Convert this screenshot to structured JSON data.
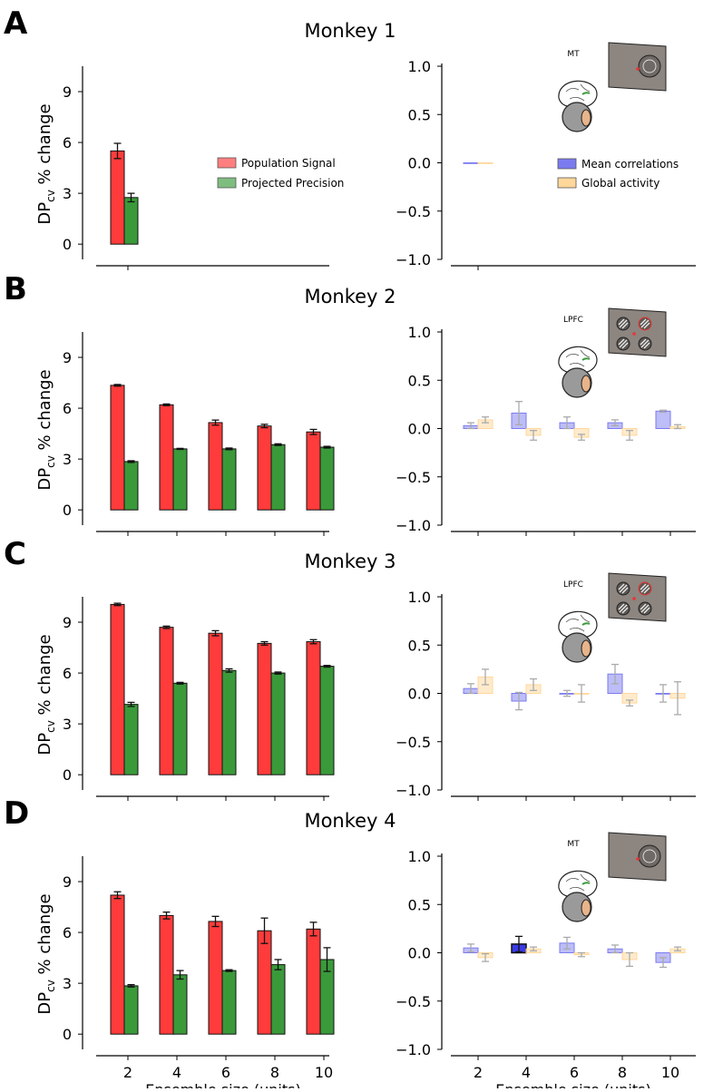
{
  "figure": {
    "xlabel": "Ensemble size (units)",
    "left_ylabel_main": "DP",
    "left_ylabel_sub": "cv",
    "left_ylabel_rest": " % change",
    "left_yticks": [
      "0",
      "3",
      "6",
      "9"
    ],
    "right_yticks": [
      "1.0",
      "0.5",
      "0.0",
      "−0.5",
      "−1.0"
    ],
    "xticks": [
      "2",
      "4",
      "6",
      "8",
      "10"
    ],
    "legend_left": [
      "Population Signal",
      "Projected Precision"
    ],
    "legend_right": [
      "Mean correlations",
      "Global activity"
    ],
    "colors": {
      "population_signal": "#ff3b3b",
      "projected_precision": "#3a9a3a",
      "mean_correlations": "#7b7bf0",
      "global_activity": "#ffd79a",
      "inset_panel": "#8c8580"
    }
  },
  "chart_data": [
    {
      "type": "bar",
      "label": "A",
      "title": "Monkey 1",
      "area": "MT",
      "x": [
        2
      ],
      "left": {
        "ylabel": "DPcv % change",
        "ylim": [
          -0.9,
          10.5
        ],
        "series": [
          {
            "name": "Population Signal",
            "values": [
              5.5
            ],
            "errors": [
              0.45
            ]
          },
          {
            "name": "Projected Precision",
            "values": [
              2.75
            ],
            "errors": [
              0.25
            ]
          }
        ]
      },
      "right": {
        "ylim": [
          -1.0,
          1.0
        ],
        "series": [
          {
            "name": "Mean correlations",
            "values": [
              0.0
            ],
            "errors": [
              0.0
            ]
          },
          {
            "name": "Global activity",
            "values": [
              0.0
            ],
            "errors": [
              0.0
            ]
          }
        ]
      }
    },
    {
      "type": "bar",
      "label": "B",
      "title": "Monkey 2",
      "area": "LPFC",
      "x": [
        2,
        4,
        6,
        8,
        10
      ],
      "left": {
        "ylabel": "DPcv % change",
        "ylim": [
          -0.9,
          10.5
        ],
        "series": [
          {
            "name": "Population Signal",
            "values": [
              7.35,
              6.2,
              5.15,
              4.95,
              4.6
            ],
            "errors": [
              0.05,
              0.05,
              0.15,
              0.1,
              0.15
            ]
          },
          {
            "name": "Projected Precision",
            "values": [
              2.85,
              3.6,
              3.6,
              3.85,
              3.7
            ],
            "errors": [
              0.05,
              0.03,
              0.05,
              0.05,
              0.05
            ]
          }
        ]
      },
      "right": {
        "ylim": [
          -1.0,
          1.0
        ],
        "series": [
          {
            "name": "Mean correlations",
            "values": [
              0.03,
              0.16,
              0.06,
              0.06,
              0.18
            ],
            "errors": [
              0.03,
              0.12,
              0.06,
              0.03,
              0.01
            ]
          },
          {
            "name": "Global activity",
            "values": [
              0.09,
              -0.07,
              -0.09,
              -0.07,
              0.02
            ],
            "errors": [
              0.03,
              0.05,
              0.03,
              0.05,
              0.02
            ]
          }
        ]
      }
    },
    {
      "type": "bar",
      "label": "C",
      "title": "Monkey 3",
      "area": "LPFC",
      "x": [
        2,
        4,
        6,
        8,
        10
      ],
      "left": {
        "ylabel": "DPcv % change",
        "ylim": [
          -0.9,
          10.5
        ],
        "series": [
          {
            "name": "Population Signal",
            "values": [
              10.05,
              8.7,
              8.35,
              7.75,
              7.85
            ],
            "errors": [
              0.07,
              0.07,
              0.15,
              0.1,
              0.12
            ]
          },
          {
            "name": "Projected Precision",
            "values": [
              4.15,
              5.4,
              6.15,
              6.0,
              6.4
            ],
            "errors": [
              0.12,
              0.05,
              0.1,
              0.06,
              0.05
            ]
          }
        ]
      },
      "right": {
        "ylim": [
          -1.0,
          1.0
        ],
        "series": [
          {
            "name": "Mean correlations",
            "values": [
              0.05,
              -0.08,
              0.0,
              0.2,
              0.0
            ],
            "errors": [
              0.05,
              0.09,
              0.03,
              0.1,
              0.09
            ]
          },
          {
            "name": "Global activity",
            "values": [
              0.17,
              0.09,
              0.0,
              -0.1,
              -0.05
            ],
            "errors": [
              0.08,
              0.06,
              0.09,
              0.03,
              0.17
            ]
          }
        ]
      }
    },
    {
      "type": "bar",
      "label": "D",
      "title": "Monkey 4",
      "area": "MT",
      "x": [
        2,
        4,
        6,
        8,
        10
      ],
      "left": {
        "ylabel": "DPcv % change",
        "ylim": [
          -0.9,
          10.5
        ],
        "series": [
          {
            "name": "Population Signal",
            "values": [
              8.2,
              7.0,
              6.65,
              6.1,
              6.2
            ],
            "errors": [
              0.2,
              0.2,
              0.3,
              0.75,
              0.4
            ]
          },
          {
            "name": "Projected Precision",
            "values": [
              2.85,
              3.5,
              3.75,
              4.1,
              4.4
            ],
            "errors": [
              0.07,
              0.25,
              0.05,
              0.3,
              0.7
            ]
          }
        ]
      },
      "right": {
        "ylim": [
          -1.0,
          1.0
        ],
        "series": [
          {
            "name": "Mean correlations",
            "values": [
              0.05,
              0.09,
              0.1,
              0.04,
              -0.1
            ],
            "errors": [
              0.04,
              0.08,
              0.06,
              0.04,
              0.05
            ]
          },
          {
            "name": "Global activity",
            "values": [
              -0.05,
              0.04,
              -0.02,
              -0.07,
              0.04
            ],
            "errors": [
              0.04,
              0.02,
              0.02,
              0.07,
              0.02
            ]
          }
        ],
        "highlight": [
          false,
          true,
          false,
          false,
          false
        ]
      }
    }
  ]
}
